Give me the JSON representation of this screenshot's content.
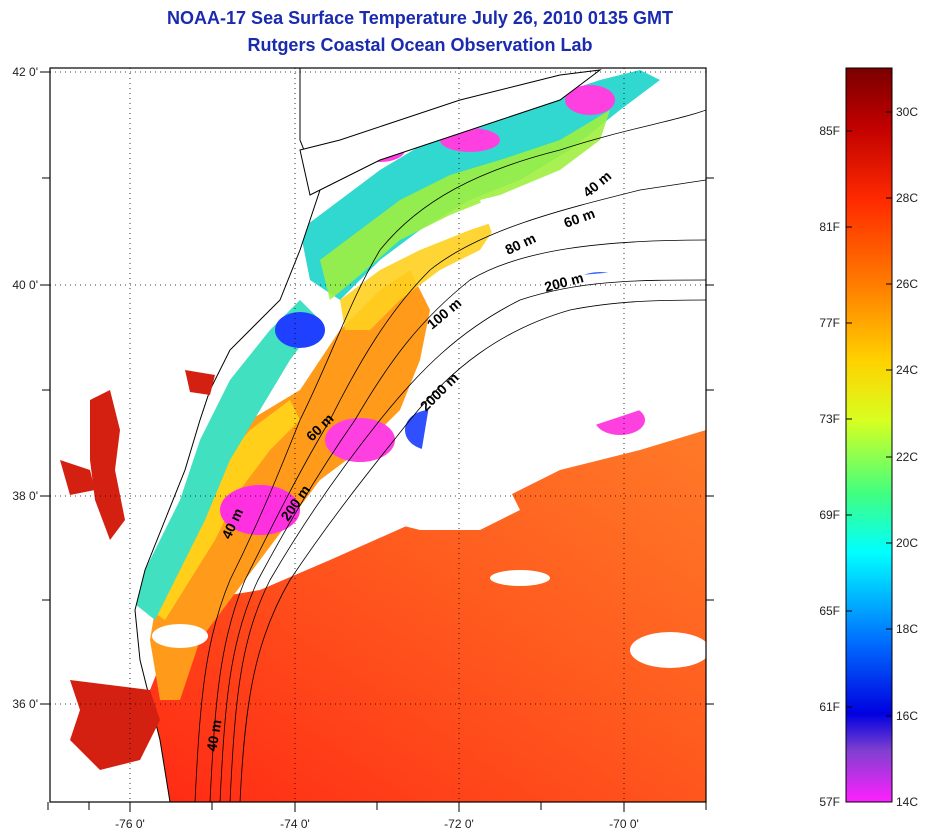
{
  "title": "NOAA-17 Sea Surface Temperature July 26, 2010 0135 GMT",
  "subtitle": "Rutgers Coastal Ocean Observation Lab",
  "map": {
    "lon_ticks": [
      "-76 0'",
      "-74 0'",
      "-72 0'",
      "-70 0'"
    ],
    "lat_ticks": [
      "42 0'",
      "40 0'",
      "38 0'",
      "36 0'"
    ],
    "isobath_labels": [
      "40 m",
      "60 m",
      "80 m",
      "200 m",
      "100 m",
      "2000 m",
      "60 m",
      "200 m",
      "40 m",
      "40 m"
    ]
  },
  "colorbar": {
    "fahrenheit": [
      "85F",
      "81F",
      "77F",
      "73F",
      "69F",
      "65F",
      "61F",
      "57F"
    ],
    "celsius": [
      "30C",
      "28C",
      "26C",
      "24C",
      "22C",
      "20C",
      "18C",
      "16C",
      "14C"
    ],
    "colors": [
      "#7a0000",
      "#c00000",
      "#ff2a00",
      "#ff8000",
      "#ffd200",
      "#d8ff20",
      "#40ff80",
      "#00ffff",
      "#0070ff",
      "#0000e0",
      "#8040d0",
      "#ff20ff"
    ]
  },
  "legend_colors": {
    "land": "#ffffff",
    "cloud": "#ffffff",
    "water_warm": "#ff4a1a",
    "coastline": "#000000"
  }
}
